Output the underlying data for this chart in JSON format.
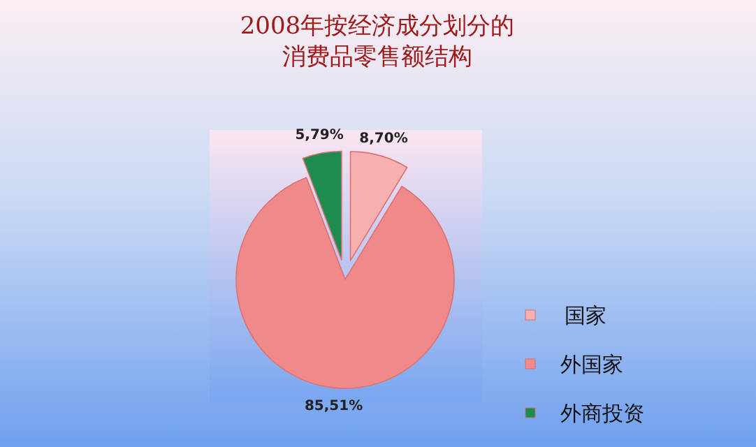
{
  "chart_data": {
    "type": "pie",
    "title": "2008年按经济成分划分的消费品零售额结构",
    "categories": [
      "国家",
      "外国家",
      "外商投资"
    ],
    "values": [
      8.7,
      85.51,
      5.79
    ],
    "value_labels": [
      "8,70%",
      "85,51%",
      "5,79%"
    ],
    "colors": [
      "#f7b0b0",
      "#f08a8a",
      "#1e8c50"
    ],
    "legend": "right"
  }
}
